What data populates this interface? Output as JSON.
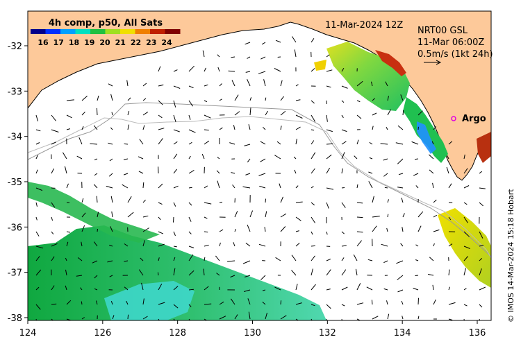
{
  "title": {
    "datetime": "11-Mar-2024 12Z",
    "product": "NRT00 GSL",
    "current_time": "11-Mar 06:00Z",
    "scale_label": "0.5m/s (1kt 24h)"
  },
  "colorbar": {
    "title": "4h comp, p50, All Sats",
    "ticks": [
      "16",
      "17",
      "18",
      "19",
      "20",
      "21",
      "22",
      "23",
      "24"
    ],
    "colors": [
      "#00008b",
      "#0030ff",
      "#00a0ff",
      "#00e0c0",
      "#20c040",
      "#a0e020",
      "#f0e000",
      "#f08000",
      "#c02000",
      "#800000"
    ]
  },
  "axes": {
    "x_ticks": [
      "124",
      "126",
      "128",
      "130",
      "132",
      "134",
      "136"
    ],
    "y_ticks": [
      "-32",
      "-33",
      "-34",
      "-35",
      "-36",
      "-37",
      "-38"
    ]
  },
  "labels": {
    "argo": "Argo"
  },
  "credit": "© IMOS 14-Mar-2024 15:18 Hobart",
  "colors": {
    "land": "#fdc99a",
    "frame": "#000000",
    "argo_marker": "#e000e0"
  }
}
